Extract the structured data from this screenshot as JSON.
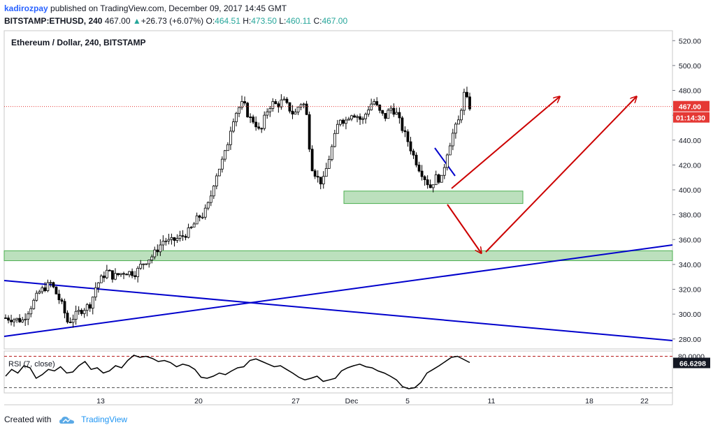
{
  "header": {
    "author": "kadirozpay",
    "published": "published on TradingView.com, December 09, 2017 14:45 GMT",
    "symbol": "BITSTAMP:ETHUSD, 240",
    "last": "467.00",
    "change_arrow": "▲",
    "change": "+26.73 (+6.07%)",
    "o_label": "O:",
    "o": "464.51",
    "h_label": "H:",
    "h": "473.50",
    "l_label": "L:",
    "l": "460.11",
    "c_label": "C:",
    "c": "467.00"
  },
  "footer": {
    "created_with": "Created with",
    "brand": "TradingView",
    "logo_icon": "tradingview-cloud-icon"
  },
  "colors": {
    "up": "#26a69a",
    "down": "#ef5350",
    "candle_body": "#000000",
    "zone": "#a5d6a7",
    "trend": "#0000cc",
    "arrow": "#cc0000",
    "price_tag": "#e53935"
  },
  "chart_data": {
    "type": "candlestick",
    "title": "Ethereum / Dollar, 240, BITSTAMP",
    "ylim": [
      272,
      528
    ],
    "y_ticks": [
      520,
      500,
      480,
      460,
      440,
      420,
      400,
      380,
      360,
      340,
      320,
      300,
      280
    ],
    "x_ticks": [
      "13",
      "20",
      "27",
      "Dec",
      "5",
      "11",
      "18",
      "22"
    ],
    "last_price": "467.00",
    "countdown": "01:14:30",
    "zones": [
      {
        "from": 343,
        "to": 351
      },
      {
        "from": 389,
        "to": 399
      }
    ],
    "price_path": [
      [
        0,
        297
      ],
      [
        3,
        295
      ],
      [
        6,
        318
      ],
      [
        8,
        325
      ],
      [
        10,
        307
      ],
      [
        11,
        293
      ],
      [
        13,
        302
      ],
      [
        15,
        308
      ],
      [
        16,
        323
      ],
      [
        18,
        335
      ],
      [
        19,
        330
      ],
      [
        21,
        334
      ],
      [
        23,
        333
      ],
      [
        24,
        340
      ],
      [
        26,
        347
      ],
      [
        28,
        360
      ],
      [
        29,
        358
      ],
      [
        31,
        362
      ],
      [
        32,
        365
      ],
      [
        33,
        370
      ],
      [
        34,
        378
      ],
      [
        35,
        380
      ],
      [
        36,
        390
      ],
      [
        37,
        410
      ],
      [
        38,
        420
      ],
      [
        39,
        432
      ],
      [
        40,
        455
      ],
      [
        41,
        465
      ],
      [
        42,
        470
      ],
      [
        43,
        458
      ],
      [
        44,
        455
      ],
      [
        45,
        445
      ],
      [
        46,
        462
      ],
      [
        47,
        470
      ],
      [
        48,
        468
      ],
      [
        49,
        472
      ],
      [
        50,
        466
      ],
      [
        51,
        460
      ],
      [
        52,
        470
      ],
      [
        53,
        468
      ],
      [
        54,
        420
      ],
      [
        55,
        410
      ],
      [
        56,
        405
      ],
      [
        57,
        423
      ],
      [
        58,
        440
      ],
      [
        59,
        458
      ],
      [
        60,
        455
      ],
      [
        61,
        462
      ],
      [
        62,
        460
      ],
      [
        63,
        455
      ],
      [
        64,
        465
      ],
      [
        65,
        472
      ],
      [
        66,
        463
      ],
      [
        67,
        458
      ],
      [
        68,
        466
      ],
      [
        69,
        462
      ],
      [
        70,
        450
      ],
      [
        71,
        440
      ],
      [
        72,
        428
      ],
      [
        73,
        418
      ],
      [
        74,
        410
      ],
      [
        75,
        402
      ],
      [
        76,
        410
      ],
      [
        77,
        408
      ],
      [
        78,
        430
      ],
      [
        79,
        445
      ],
      [
        80,
        455
      ],
      [
        81,
        477
      ],
      [
        82,
        467
      ]
    ],
    "rsi": {
      "label": "RSI (7, close)",
      "value": "66.6298",
      "top_tick": "80.0000",
      "bands": [
        80,
        20
      ],
      "values": [
        42,
        55,
        48,
        62,
        58,
        38,
        45,
        55,
        52,
        60,
        48,
        50,
        62,
        70,
        55,
        58,
        48,
        52,
        62,
        58,
        72,
        82,
        78,
        80,
        76,
        70,
        72,
        68,
        60,
        65,
        62,
        55,
        40,
        38,
        42,
        48,
        45,
        52,
        58,
        60,
        72,
        75,
        70,
        65,
        60,
        62,
        55,
        48,
        40,
        35,
        38,
        42,
        32,
        35,
        38,
        52,
        58,
        62,
        65,
        60,
        58,
        52,
        48,
        42,
        35,
        22,
        18,
        20,
        30,
        48,
        55,
        62,
        70,
        78,
        80,
        74,
        68
      ]
    }
  }
}
